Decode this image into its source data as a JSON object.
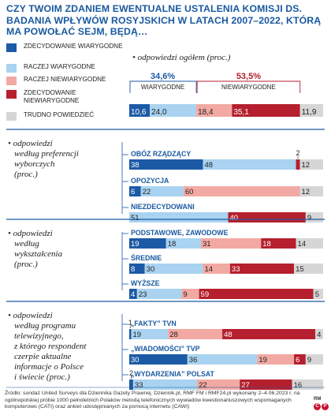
{
  "title": "CZY TWOIM ZDANIEM EWENTUALNE USTALENIA KOMISJI DS. BADANIA WPŁYWÓW ROSYJSKICH W LATACH 2007–2022, KTÓRĄ MA POWOŁAĆ SEJM, BĘDĄ…",
  "colors": {
    "zdecydowanie_wiarygodne": "#1c5aa6",
    "raczej_wiarygodne": "#a9d3f0",
    "raczej_niewiarygodne": "#f2a9a3",
    "zdecydowanie_niewiarygodne": "#b51f2e",
    "trudno_powiedziec": "#d6d6d6",
    "accent_blue": "#1a5aa0",
    "accent_red": "#c8102e",
    "divider": "#1a5aa0"
  },
  "legend": [
    {
      "label": "ZDECYDOWANIE WIARYGODNE",
      "color": "#1c5aa6"
    },
    {
      "label": "RACZEJ WIARYGODNE",
      "color": "#a9d3f0"
    },
    {
      "label": "RACZEJ NIEWIARYGODNE",
      "color": "#f2a9a3"
    },
    {
      "label": "ZDECYDOWANIE NIEWIARYGODNE",
      "color": "#b51f2e"
    },
    {
      "label": "TRUDNO POWIEDZIEĆ",
      "color": "#d6d6d6"
    }
  ],
  "chart_data": {
    "type": "bar",
    "orientation": "horizontal-stacked",
    "unit": "%",
    "overall": {
      "section_label": "odpowiedzi ogółem (proc.)",
      "wiarygodne_total": "34,6%",
      "wiarygodne_label": "WIARYGODNE",
      "niewiarygodne_total": "53,5%",
      "niewiarygodne_label": "NIEWIARYGODNE",
      "values": [
        10.6,
        24.0,
        18.4,
        35.1,
        11.9
      ],
      "labels": [
        "10,6",
        "24,0",
        "18,4",
        "35,1",
        "11,9"
      ]
    },
    "sections": [
      {
        "label": "odpowiedzi według preferencji wyborczych (proc.)",
        "groups": [
          {
            "name": "OBÓZ RZĄDZĄCY",
            "values": [
              38,
              48,
              0,
              2,
              12
            ],
            "labels": [
              "38",
              "48",
              "",
              "2",
              "12"
            ]
          },
          {
            "name": "OPOZYCJA",
            "values": [
              6,
              22,
              60,
              0,
              12
            ],
            "labels": [
              "6",
              "22",
              "60",
              "",
              "12"
            ]
          },
          {
            "name": "NIEZDECYDOWANI",
            "values": [
              0,
              51,
              0,
              40,
              9
            ],
            "labels": [
              "",
              "51",
              "",
              "40",
              "9"
            ]
          }
        ]
      },
      {
        "label": "odpowiedzi według wykształcenia (proc.)",
        "groups": [
          {
            "name": "PODSTAWOWE, ZAWODOWE",
            "values": [
              19,
              18,
              31,
              18,
              14
            ],
            "labels": [
              "19",
              "18",
              "31",
              "18",
              "14"
            ]
          },
          {
            "name": "ŚREDNIE",
            "values": [
              8,
              30,
              14,
              33,
              15
            ],
            "labels": [
              "8",
              "30",
              "14",
              "33",
              "15"
            ]
          },
          {
            "name": "WYŻSZE",
            "values": [
              4,
              23,
              9,
              59,
              5
            ],
            "labels": [
              "4",
              "23",
              "9",
              "59",
              "5"
            ]
          }
        ]
      },
      {
        "label": "odpowiedzi według programu telewizyjnego, z którego respondent czerpie aktualne informacje o Polsce i świecie (proc.)",
        "groups": [
          {
            "name": "„FAKTY” TVN",
            "values": [
              1,
              19,
              28,
              48,
              4
            ],
            "labels": [
              "1",
              "19",
              "28",
              "48",
              "4"
            ]
          },
          {
            "name": "„WIADOMOŚCI” TVP",
            "values": [
              30,
              36,
              19,
              6,
              9
            ],
            "labels": [
              "30",
              "36",
              "19",
              "6",
              "9"
            ]
          },
          {
            "name": "„WYDARZENIA” POLSAT",
            "values": [
              2,
              33,
              22,
              27,
              16
            ],
            "labels": [
              "2",
              "33",
              "22",
              "27",
              "16"
            ]
          }
        ]
      }
    ]
  },
  "source": "Źródło: sondaż United Surveys dla Dziennika Gazety Prawnej, Dziennik.pl, RMF FM i RMF24.pl wykonany 2–4.06.2023 r. na ogólnopolskiej próbie 1000 pełnoletnich Polaków metodą telefonicznych wywiadów kwestionariuszowych wspomaganych komputerowo (CATI) oraz ankiet udostępnianych za pomocą internetu (CAWI)",
  "logo": {
    "text": "RM",
    "c1": "C",
    "c2": "P"
  }
}
